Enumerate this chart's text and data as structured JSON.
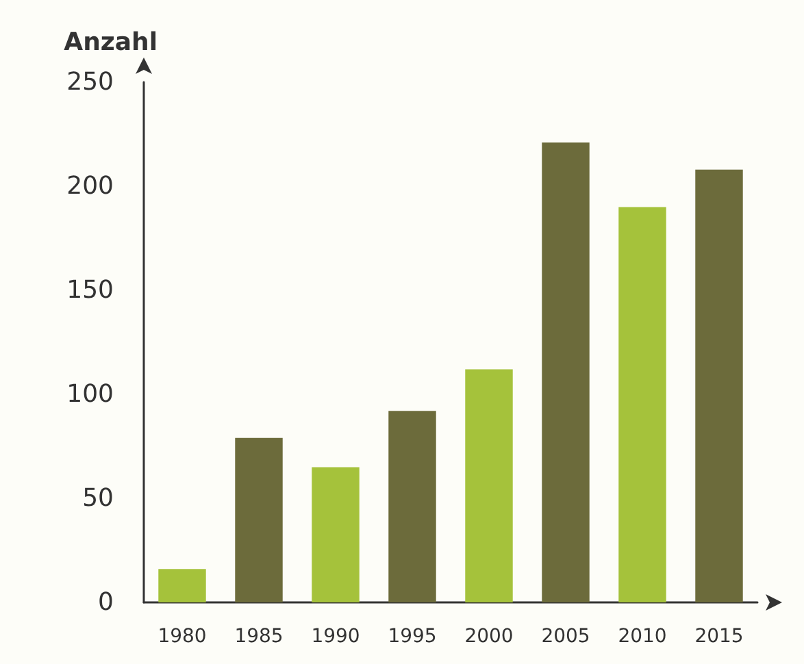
{
  "chart_data": {
    "type": "bar",
    "ylabel": "Anzahl",
    "categories": [
      "1980",
      "1985",
      "1990",
      "1995",
      "2000",
      "2005",
      "2010",
      "2015"
    ],
    "values": [
      16,
      79,
      65,
      92,
      112,
      221,
      190,
      208
    ],
    "colors": [
      "#a5c23b",
      "#6c6b3b",
      "#a5c23b",
      "#6c6b3b",
      "#a5c23b",
      "#6c6b3b",
      "#a5c23b",
      "#6c6b3b"
    ],
    "ylim": [
      0,
      250
    ],
    "yticks": [
      0,
      50,
      100,
      150,
      200,
      250
    ],
    "grid": false
  }
}
